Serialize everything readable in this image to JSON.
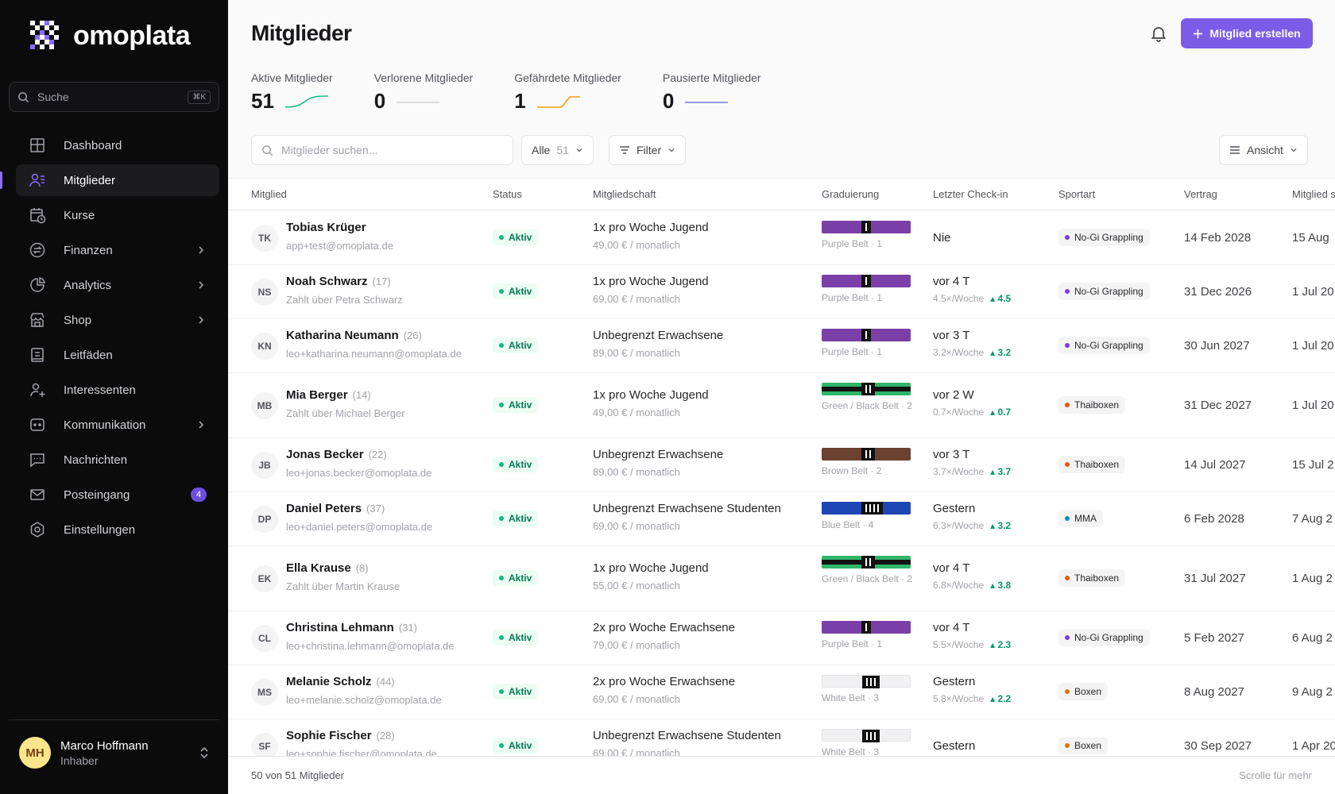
{
  "app": {
    "name": "omoplata"
  },
  "sidebar": {
    "search": {
      "placeholder": "Suche",
      "shortcut": "⌘K"
    },
    "items": [
      {
        "label": "Dashboard",
        "icon": "dashboard-icon",
        "chevron": false,
        "badge": ""
      },
      {
        "label": "Mitglieder",
        "icon": "users-icon",
        "chevron": false,
        "badge": "",
        "active": true
      },
      {
        "label": "Kurse",
        "icon": "calendar-clock-icon",
        "chevron": false,
        "badge": ""
      },
      {
        "label": "Finanzen",
        "icon": "exchange-icon",
        "chevron": true,
        "badge": ""
      },
      {
        "label": "Analytics",
        "icon": "pie-chart-icon",
        "chevron": true,
        "badge": ""
      },
      {
        "label": "Shop",
        "icon": "store-icon",
        "chevron": true,
        "badge": ""
      },
      {
        "label": "Leitfäden",
        "icon": "book-icon",
        "chevron": false,
        "badge": ""
      },
      {
        "label": "Interessenten",
        "icon": "user-plus-icon",
        "chevron": false,
        "badge": ""
      },
      {
        "label": "Kommunikation",
        "icon": "chat-bot-icon",
        "chevron": true,
        "badge": ""
      },
      {
        "label": "Nachrichten",
        "icon": "message-icon",
        "chevron": false,
        "badge": ""
      },
      {
        "label": "Posteingang",
        "icon": "mail-icon",
        "chevron": false,
        "badge": "4"
      },
      {
        "label": "Einstellungen",
        "icon": "settings-icon",
        "chevron": false,
        "badge": ""
      }
    ],
    "user": {
      "initials": "MH",
      "name": "Marco Hoffmann",
      "role": "Inhaber"
    }
  },
  "header": {
    "title": "Mitglieder",
    "create_label": "Mitglied erstellen"
  },
  "stats": [
    {
      "label": "Aktive Mitglieder",
      "value": "51",
      "color": "#10b981",
      "trend": "up"
    },
    {
      "label": "Verlorene Mitglieder",
      "value": "0",
      "color": "#d4d4d8",
      "trend": "flat"
    },
    {
      "label": "Gefährdete Mitglieder",
      "value": "1",
      "color": "#f59e0b",
      "trend": "step"
    },
    {
      "label": "Pausierte Mitglieder",
      "value": "0",
      "color": "#6b7fd7",
      "trend": "flat"
    }
  ],
  "toolbar": {
    "search_placeholder": "Mitglieder suchen...",
    "filter_all": "Alle",
    "filter_all_count": "51",
    "filter_label": "Filter",
    "view_label": "Ansicht"
  },
  "table": {
    "columns": [
      "Mitglied",
      "Status",
      "Mitgliedschaft",
      "Graduierung",
      "Letzter Check-in",
      "Sportart",
      "Vertrag",
      "Mitglied s"
    ],
    "rows": [
      {
        "initials": "TK",
        "name": "Tobias Krüger",
        "age": "",
        "sub": "app+test@omoplata.de",
        "status": "Aktiv",
        "plan": "1x pro Woche Jugend",
        "price": "49,00 € / monatlich",
        "belt": "Purple Belt · 1",
        "belt_color": "#7b3fa8",
        "belt_type": "solid",
        "stripes": 0,
        "checkin": "Nie",
        "freq": "",
        "trend": "",
        "sport": "No-Gi Grappling",
        "sport_color": "#7c3aed",
        "contract": "14 Feb 2028",
        "since": "15 Aug"
      },
      {
        "initials": "NS",
        "name": "Noah Schwarz",
        "age": "(17)",
        "sub": "Zahlt über Petra Schwarz",
        "status": "Aktiv",
        "plan": "1x pro Woche Jugend",
        "price": "69,00 € / monatlich",
        "belt": "Purple Belt · 1",
        "belt_color": "#7b3fa8",
        "belt_type": "solid",
        "stripes": 0,
        "checkin": "vor 4 T",
        "freq": "4.5×/Woche",
        "trend": "4.5",
        "sport": "No-Gi Grappling",
        "sport_color": "#7c3aed",
        "contract": "31 Dec 2026",
        "since": "1 Jul 20"
      },
      {
        "initials": "KN",
        "name": "Katharina Neumann",
        "age": "(26)",
        "sub": "leo+katharina.neumann@omoplata.de",
        "status": "Aktiv",
        "plan": "Unbegrenzt Erwachsene",
        "price": "89,00 € / monatlich",
        "belt": "Purple Belt · 1",
        "belt_color": "#7b3fa8",
        "belt_type": "solid",
        "stripes": 0,
        "checkin": "vor 3 T",
        "freq": "3.2×/Woche",
        "trend": "3.2",
        "sport": "No-Gi Grappling",
        "sport_color": "#7c3aed",
        "contract": "30 Jun 2027",
        "since": "1 Jul 20"
      },
      {
        "initials": "MB",
        "name": "Mia Berger",
        "age": "(14)",
        "sub": "Zahlt über Michael Berger",
        "status": "Aktiv",
        "plan": "1x pro Woche Jugend",
        "price": "49,00 € / monatlich",
        "belt": "Green / Black Belt · 2",
        "belt_color": "#2fb56b",
        "belt_type": "stripe",
        "stripes": 2,
        "checkin": "vor 2 W",
        "freq": "0.7×/Woche",
        "trend": "0.7",
        "sport": "Thaiboxen",
        "sport_color": "#ea580c",
        "contract": "31 Dec 2027",
        "since": "1 Jul 20"
      },
      {
        "initials": "JB",
        "name": "Jonas Becker",
        "age": "(22)",
        "sub": "leo+jonas.becker@omoplata.de",
        "status": "Aktiv",
        "plan": "Unbegrenzt Erwachsene",
        "price": "89,00 € / monatlich",
        "belt": "Brown Belt · 2",
        "belt_color": "#6b4130",
        "belt_type": "solid",
        "stripes": 2,
        "checkin": "vor 3 T",
        "freq": "3.7×/Woche",
        "trend": "3.7",
        "sport": "Thaiboxen",
        "sport_color": "#ea580c",
        "contract": "14 Jul 2027",
        "since": "15 Jul 2"
      },
      {
        "initials": "DP",
        "name": "Daniel Peters",
        "age": "(37)",
        "sub": "leo+daniel.peters@omoplata.de",
        "status": "Aktiv",
        "plan": "Unbegrenzt Erwachsene Studenten",
        "price": "69,00 € / monatlich",
        "belt": "Blue Belt · 4",
        "belt_color": "#1e46b4",
        "belt_type": "solid",
        "stripes": 4,
        "checkin": "Gestern",
        "freq": "6.3×/Woche",
        "trend": "3.2",
        "sport": "MMA",
        "sport_color": "#0891b2",
        "contract": "6 Feb 2028",
        "since": "7 Aug 2"
      },
      {
        "initials": "EK",
        "name": "Ella Krause",
        "age": "(8)",
        "sub": "Zahlt über Martin Krause",
        "status": "Aktiv",
        "plan": "1x pro Woche Jugend",
        "price": "55,00 € / monatlich",
        "belt": "Green / Black Belt · 2",
        "belt_color": "#2fb56b",
        "belt_type": "stripe",
        "stripes": 2,
        "checkin": "vor 4 T",
        "freq": "6.8×/Woche",
        "trend": "3.8",
        "sport": "Thaiboxen",
        "sport_color": "#ea580c",
        "contract": "31 Jul 2027",
        "since": "1 Aug 2"
      },
      {
        "initials": "CL",
        "name": "Christina Lehmann",
        "age": "(31)",
        "sub": "leo+christina.lehmann@omoplata.de",
        "status": "Aktiv",
        "plan": "2x pro Woche Erwachsene",
        "price": "79,00 € / monatlich",
        "belt": "Purple Belt · 1",
        "belt_color": "#7b3fa8",
        "belt_type": "solid",
        "stripes": 0,
        "checkin": "vor 4 T",
        "freq": "5.5×/Woche",
        "trend": "2.3",
        "sport": "No-Gi Grappling",
        "sport_color": "#7c3aed",
        "contract": "5 Feb 2027",
        "since": "6 Aug 2"
      },
      {
        "initials": "MS",
        "name": "Melanie Scholz",
        "age": "(44)",
        "sub": "leo+melanie.scholz@omoplata.de",
        "status": "Aktiv",
        "plan": "2x pro Woche Erwachsene",
        "price": "69,00 € / monatlich",
        "belt": "White Belt · 3",
        "belt_color": "#f1f1f3",
        "belt_type": "white",
        "stripes": 3,
        "checkin": "Gestern",
        "freq": "5.8×/Woche",
        "trend": "2.2",
        "sport": "Boxen",
        "sport_color": "#d97706",
        "contract": "8 Aug 2027",
        "since": "9 Aug 2"
      },
      {
        "initials": "SF",
        "name": "Sophie Fischer",
        "age": "(28)",
        "sub": "leo+sophie.fischer@omoplata.de",
        "status": "Aktiv",
        "plan": "Unbegrenzt Erwachsene Studenten",
        "price": "69,00 € / monatlich",
        "belt": "White Belt · 3",
        "belt_color": "#f1f1f3",
        "belt_type": "white",
        "stripes": 3,
        "checkin": "Gestern",
        "freq": "",
        "trend": "",
        "sport": "Boxen",
        "sport_color": "#d97706",
        "contract": "30 Sep 2027",
        "since": "1 Apr 20"
      }
    ]
  },
  "footer": {
    "count_text": "50 von 51 Mitglieder",
    "scroll_hint": "Scrolle für mehr"
  }
}
